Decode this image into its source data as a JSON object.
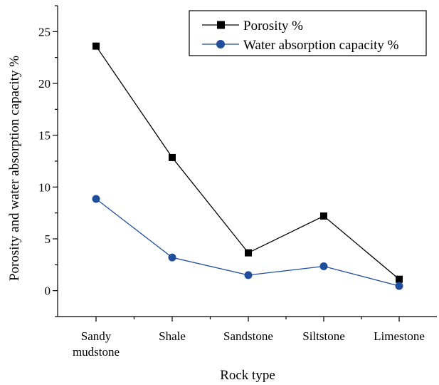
{
  "chart_data": {
    "type": "line",
    "categories": [
      "Sandy mudstone",
      "Shale",
      "Sandstone",
      "Siltstone",
      "Limestone"
    ],
    "category_lines": [
      [
        "Sandy",
        "mudstone"
      ],
      [
        "Shale"
      ],
      [
        "Sandstone"
      ],
      [
        "Siltstone"
      ],
      [
        "Limestone"
      ]
    ],
    "series": [
      {
        "name": "Porosity %",
        "values": [
          23.6,
          12.85,
          3.65,
          7.2,
          1.1
        ],
        "color": "#000000",
        "marker": "square"
      },
      {
        "name": "Water absorption capacity %",
        "values": [
          8.85,
          3.2,
          1.5,
          2.35,
          0.45
        ],
        "color": "#1f4e9c",
        "marker": "circle"
      }
    ],
    "xlabel": "Rock type",
    "ylabel": "Porosity and water absorption capacity %",
    "ylim": [
      -2.5,
      27.5
    ],
    "yticks": [
      0,
      5,
      10,
      15,
      20,
      25
    ],
    "legend_position": "top-right",
    "grid": false
  }
}
